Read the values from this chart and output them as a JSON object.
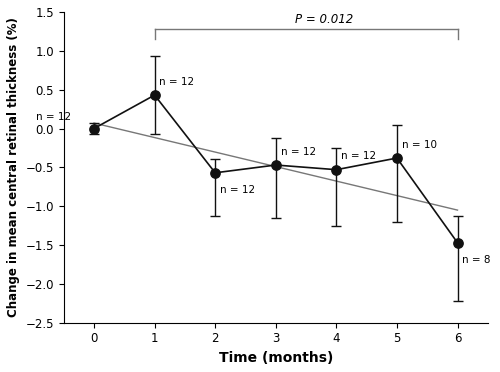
{
  "x": [
    0,
    1,
    2,
    3,
    4,
    5,
    6
  ],
  "y": [
    0.0,
    0.43,
    -0.57,
    -0.47,
    -0.53,
    -0.38,
    -1.47
  ],
  "yerr_upper": [
    0.07,
    0.5,
    0.18,
    0.35,
    0.28,
    0.42,
    0.35
  ],
  "yerr_lower": [
    0.07,
    0.5,
    0.55,
    0.68,
    0.73,
    0.82,
    0.75
  ],
  "n_labels": [
    "n = 12",
    "n = 12",
    "n = 12",
    "n = 12",
    "n = 12",
    "n = 10",
    "n = 8"
  ],
  "n_label_offsets_x": [
    -0.38,
    0.08,
    0.08,
    0.08,
    0.08,
    0.08,
    0.08
  ],
  "n_label_offsets_y": [
    0.15,
    0.17,
    -0.22,
    0.17,
    0.17,
    0.17,
    -0.22
  ],
  "trend_x": [
    0,
    6
  ],
  "trend_y": [
    0.07,
    -1.05
  ],
  "p_value_text": "P = 0.012",
  "p_bracket_x1": 1,
  "p_bracket_x2": 6,
  "p_bracket_y": 1.28,
  "p_bracket_drop": 0.13,
  "xlabel": "Time (months)",
  "ylabel": "Change in mean central retinal thickness (%)",
  "ylim": [
    -2.5,
    1.5
  ],
  "xlim": [
    -0.5,
    6.5
  ],
  "yticks": [
    -2.5,
    -2.0,
    -1.5,
    -1.0,
    -0.5,
    0.0,
    0.5,
    1.0,
    1.5
  ],
  "xticks": [
    0,
    1,
    2,
    3,
    4,
    5,
    6
  ],
  "marker_color": "#111111",
  "line_color": "#111111",
  "trend_color": "#777777",
  "bracket_color": "#777777",
  "bg_color": "#ffffff"
}
